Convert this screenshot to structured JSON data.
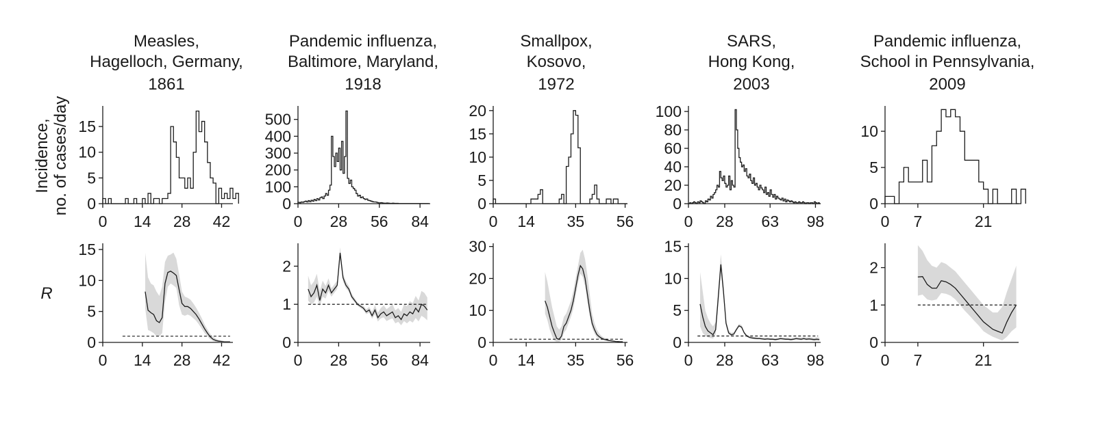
{
  "row_labels": {
    "incidence": [
      "Incidence,",
      "no. of cases/day"
    ],
    "r": "R"
  },
  "chart_data": [
    {
      "type": "line",
      "title": [
        "Measles,",
        "Hagelloch, Germany,",
        "1861"
      ],
      "incidence": {
        "xlim": [
          0,
          46
        ],
        "xticks": [
          0,
          14,
          28,
          42
        ],
        "ylim": [
          0,
          19
        ],
        "yticks": [
          0,
          5,
          10,
          15
        ],
        "counts": [
          1,
          0,
          1,
          0,
          0,
          0,
          0,
          0,
          1,
          0,
          0,
          1,
          0,
          0,
          1,
          0,
          2,
          0,
          1,
          1,
          0,
          1,
          1,
          2,
          15,
          12,
          9,
          5,
          5,
          3,
          5,
          3,
          10,
          18,
          14,
          16,
          12,
          8,
          5,
          4,
          0,
          3,
          1,
          2,
          1,
          3,
          1,
          2
        ]
      },
      "r": {
        "xlim": [
          0,
          46
        ],
        "xticks": [
          0,
          14,
          28,
          42
        ],
        "ylim": [
          0,
          16
        ],
        "yticks": [
          0,
          5,
          10,
          15
        ],
        "ref": 1,
        "ref_x": [
          7,
          45
        ],
        "x": [
          15,
          16,
          17,
          18,
          19,
          20,
          21,
          22,
          23,
          24,
          25,
          26,
          27,
          28,
          29,
          30,
          31,
          32,
          33,
          34,
          35,
          36,
          37,
          38,
          39,
          40,
          41,
          42,
          43,
          44,
          45
        ],
        "y": [
          8.2,
          5.2,
          4.8,
          4.5,
          3.5,
          3.2,
          4.0,
          9.5,
          11.3,
          11.5,
          11.2,
          10.8,
          8.5,
          6.3,
          5.8,
          5.8,
          5.5,
          5.0,
          4.5,
          3.8,
          3.0,
          2.2,
          1.5,
          0.9,
          0.5,
          0.3,
          0.2,
          0.15,
          0.1,
          0.1,
          0.1
        ],
        "lower": [
          5.5,
          2.0,
          1.8,
          1.5,
          1.0,
          1.0,
          1.5,
          6.5,
          9.0,
          9.5,
          9.2,
          8.8,
          6.0,
          4.5,
          4.3,
          4.5,
          4.3,
          3.9,
          3.5,
          2.9,
          2.2,
          1.5,
          1.0,
          0.5,
          0.2,
          0.1,
          0.05,
          0.03,
          0.02,
          0.02,
          0.02
        ],
        "upper": [
          14.5,
          10.5,
          9.5,
          9.2,
          8.2,
          7.5,
          9.0,
          13.0,
          14.0,
          14.2,
          14.5,
          13.5,
          11.0,
          8.2,
          7.4,
          7.2,
          6.9,
          6.3,
          5.6,
          4.8,
          3.9,
          2.9,
          2.1,
          1.4,
          0.9,
          0.6,
          0.4,
          0.3,
          0.2,
          0.2,
          0.2
        ]
      }
    },
    {
      "type": "line",
      "title": [
        "Pandemic influenza,",
        "Baltimore, Maryland,",
        "1918"
      ],
      "incidence": {
        "xlim": [
          0,
          91
        ],
        "xticks": [
          0,
          28,
          56,
          84
        ],
        "ylim": [
          0,
          580
        ],
        "yticks": [
          0,
          100,
          200,
          300,
          400,
          500
        ],
        "counts": [
          8,
          5,
          10,
          8,
          12,
          15,
          10,
          18,
          12,
          20,
          15,
          25,
          18,
          30,
          22,
          35,
          40,
          30,
          45,
          60,
          50,
          80,
          110,
          400,
          280,
          220,
          300,
          250,
          330,
          200,
          370,
          180,
          280,
          550,
          150,
          120,
          140,
          100,
          90,
          80,
          60,
          45,
          50,
          35,
          40,
          30,
          25,
          28,
          20,
          18,
          15,
          12,
          10,
          10,
          8,
          5,
          5,
          6,
          4,
          3,
          3,
          4,
          3,
          2,
          2,
          3,
          2,
          2,
          2,
          1,
          1,
          1,
          1,
          1,
          1,
          1,
          1,
          1,
          1,
          1,
          1,
          1,
          1,
          1,
          1,
          1,
          1,
          1,
          1,
          1
        ]
      },
      "r": {
        "xlim": [
          0,
          91
        ],
        "xticks": [
          0,
          28,
          56,
          84
        ],
        "ylim": [
          0,
          2.6
        ],
        "yticks": [
          0,
          1,
          2
        ],
        "ref": 1,
        "ref_x": [
          7,
          89
        ],
        "x": [
          7,
          9,
          11,
          13,
          15,
          17,
          19,
          21,
          23,
          25,
          27,
          29,
          31,
          33,
          35,
          37,
          39,
          41,
          43,
          45,
          47,
          49,
          51,
          53,
          55,
          57,
          59,
          61,
          63,
          65,
          67,
          69,
          71,
          73,
          75,
          77,
          79,
          81,
          83,
          85,
          87,
          89
        ],
        "y": [
          1.4,
          1.2,
          1.3,
          1.5,
          1.1,
          1.4,
          1.3,
          1.5,
          1.3,
          1.4,
          1.5,
          2.35,
          1.7,
          1.5,
          1.4,
          1.2,
          1.1,
          1.0,
          0.95,
          0.9,
          0.8,
          0.85,
          0.7,
          0.85,
          0.65,
          0.75,
          0.8,
          0.7,
          0.75,
          0.8,
          0.65,
          0.7,
          0.6,
          0.75,
          0.7,
          0.8,
          0.75,
          0.9,
          0.8,
          1.0,
          0.95,
          0.85
        ],
        "lower": [
          1.1,
          1.0,
          1.05,
          1.2,
          0.95,
          1.2,
          1.15,
          1.35,
          1.2,
          1.3,
          1.4,
          2.2,
          1.6,
          1.42,
          1.33,
          1.14,
          1.05,
          0.96,
          0.9,
          0.85,
          0.74,
          0.78,
          0.62,
          0.74,
          0.55,
          0.63,
          0.66,
          0.56,
          0.6,
          0.63,
          0.5,
          0.54,
          0.45,
          0.56,
          0.5,
          0.57,
          0.52,
          0.64,
          0.55,
          0.7,
          0.65,
          0.58
        ],
        "upper": [
          1.75,
          1.5,
          1.6,
          1.8,
          1.35,
          1.62,
          1.48,
          1.68,
          1.42,
          1.52,
          1.62,
          2.5,
          1.8,
          1.6,
          1.48,
          1.28,
          1.16,
          1.05,
          1.0,
          0.96,
          0.87,
          0.93,
          0.8,
          0.98,
          0.78,
          0.9,
          0.97,
          0.87,
          0.93,
          1.0,
          0.84,
          0.9,
          0.8,
          1.0,
          0.95,
          1.08,
          1.03,
          1.22,
          1.1,
          1.35,
          1.3,
          1.18
        ]
      }
    },
    {
      "type": "line",
      "title": [
        "Smallpox,",
        "Kosovo,",
        "1972"
      ],
      "incidence": {
        "xlim": [
          0,
          57
        ],
        "xticks": [
          0,
          14,
          35,
          56
        ],
        "ylim": [
          0,
          21
        ],
        "yticks": [
          0,
          5,
          10,
          15,
          20
        ],
        "counts": [
          1,
          0,
          0,
          0,
          0,
          0,
          0,
          0,
          0,
          0,
          0,
          0,
          0,
          0,
          0,
          0,
          1,
          1,
          1,
          2,
          3,
          0,
          0,
          0,
          0,
          0,
          0,
          0,
          1,
          2,
          0,
          8,
          10,
          15,
          20,
          19,
          12,
          0,
          0,
          0,
          0,
          1,
          2,
          4,
          1,
          0,
          0,
          0,
          1,
          1,
          0,
          1,
          1,
          0,
          0,
          0,
          0
        ]
      },
      "r": {
        "xlim": [
          0,
          57
        ],
        "xticks": [
          0,
          14,
          35,
          56
        ],
        "ylim": [
          0,
          31
        ],
        "yticks": [
          0,
          10,
          20,
          30
        ],
        "ref": 1,
        "ref_x": [
          7,
          55
        ],
        "x": [
          22,
          23,
          24,
          25,
          26,
          27,
          28,
          29,
          30,
          31,
          32,
          33,
          34,
          35,
          36,
          37,
          38,
          39,
          40,
          41,
          42,
          43,
          44,
          45,
          46,
          47,
          48,
          49,
          50,
          51,
          52,
          53,
          54,
          55
        ],
        "y": [
          13,
          11,
          8,
          5,
          3,
          1.2,
          1,
          2,
          5,
          6,
          8,
          10,
          13,
          17,
          21,
          24,
          23,
          20,
          15,
          10,
          6,
          4,
          2.5,
          1.8,
          1.3,
          1.0,
          0.8,
          0.6,
          0.5,
          0.4,
          0.3,
          0.25,
          0.2,
          0.2
        ],
        "lower": [
          9,
          7,
          4,
          2,
          0.5,
          0.2,
          0.2,
          0.8,
          3,
          4,
          6,
          8,
          10.5,
          14.5,
          18.5,
          21.5,
          20.5,
          17.5,
          12.5,
          8,
          4.5,
          2.8,
          1.6,
          1.1,
          0.8,
          0.6,
          0.45,
          0.35,
          0.28,
          0.22,
          0.17,
          0.14,
          0.11,
          0.11
        ],
        "upper": [
          22,
          19,
          15,
          11,
          8,
          5,
          4,
          5,
          8,
          9,
          11,
          13,
          16,
          20,
          24,
          28,
          29,
          26,
          21,
          15,
          9,
          6,
          4,
          2.8,
          2.0,
          1.5,
          1.2,
          0.9,
          0.75,
          0.6,
          0.45,
          0.38,
          0.3,
          0.3
        ]
      }
    },
    {
      "type": "line",
      "title": [
        "SARS,",
        "Hong Kong,",
        "2003"
      ],
      "incidence": {
        "xlim": [
          0,
          102
        ],
        "xticks": [
          0,
          28,
          63,
          98
        ],
        "ylim": [
          0,
          106
        ],
        "yticks": [
          0,
          20,
          40,
          60,
          80,
          100
        ],
        "counts": [
          0,
          1,
          0,
          1,
          2,
          1,
          0,
          2,
          1,
          3,
          2,
          1,
          0,
          3,
          2,
          5,
          4,
          8,
          6,
          10,
          12,
          15,
          20,
          18,
          35,
          28,
          25,
          30,
          22,
          18,
          20,
          30,
          15,
          25,
          20,
          18,
          102,
          80,
          60,
          50,
          45,
          40,
          42,
          35,
          38,
          30,
          28,
          32,
          25,
          22,
          28,
          20,
          22,
          18,
          15,
          20,
          17,
          15,
          12,
          18,
          10,
          12,
          8,
          15,
          10,
          7,
          10,
          5,
          8,
          6,
          5,
          4,
          6,
          3,
          5,
          2,
          4,
          3,
          2,
          3,
          2,
          1,
          2,
          1,
          1,
          2,
          1,
          1,
          2,
          1,
          0,
          1,
          1,
          0,
          1,
          1,
          0,
          2,
          1,
          0,
          1,
          0
        ]
      },
      "r": {
        "xlim": [
          0,
          102
        ],
        "xticks": [
          0,
          28,
          63,
          98
        ],
        "ylim": [
          0,
          15.5
        ],
        "yticks": [
          0,
          5,
          10,
          15
        ],
        "ref": 1,
        "ref_x": [
          7,
          100
        ],
        "x": [
          9,
          11,
          13,
          15,
          17,
          19,
          21,
          23,
          25,
          27,
          29,
          31,
          33,
          35,
          37,
          39,
          41,
          43,
          45,
          47,
          49,
          51,
          53,
          55,
          57,
          59,
          61,
          63,
          65,
          67,
          69,
          71,
          73,
          75,
          77,
          79,
          81,
          83,
          85,
          87,
          89,
          91,
          93,
          95,
          97,
          99,
          101
        ],
        "y": [
          6,
          4,
          2.5,
          1.8,
          1.5,
          1.2,
          2,
          7,
          12.2,
          8,
          3,
          1.5,
          1.2,
          1.3,
          2,
          2.6,
          2.4,
          1.5,
          1.0,
          0.8,
          0.7,
          0.65,
          0.6,
          0.6,
          0.55,
          0.5,
          0.55,
          0.5,
          0.5,
          0.45,
          0.5,
          0.6,
          0.55,
          0.5,
          0.5,
          0.45,
          0.5,
          0.6,
          0.55,
          0.5,
          0.6,
          0.5,
          0.55,
          0.5,
          0.45,
          0.5,
          0.45
        ],
        "lower": [
          2.5,
          1.5,
          1.0,
          0.8,
          0.7,
          0.6,
          1.3,
          6,
          11.3,
          7.2,
          2.6,
          1.2,
          1.0,
          1.1,
          1.8,
          2.4,
          2.2,
          1.35,
          0.85,
          0.65,
          0.55,
          0.5,
          0.45,
          0.45,
          0.4,
          0.35,
          0.4,
          0.35,
          0.35,
          0.3,
          0.35,
          0.42,
          0.38,
          0.33,
          0.33,
          0.28,
          0.32,
          0.4,
          0.35,
          0.3,
          0.38,
          0.3,
          0.33,
          0.28,
          0.23,
          0.25,
          0.2
        ],
        "upper": [
          11,
          8,
          5,
          3.8,
          3,
          2.5,
          3.2,
          8.5,
          13.8,
          9.2,
          3.5,
          1.9,
          1.5,
          1.6,
          2.3,
          2.9,
          2.7,
          1.7,
          1.2,
          1.0,
          0.9,
          0.85,
          0.8,
          0.8,
          0.75,
          0.7,
          0.75,
          0.7,
          0.7,
          0.65,
          0.7,
          0.82,
          0.76,
          0.72,
          0.72,
          0.67,
          0.72,
          0.84,
          0.8,
          0.75,
          0.86,
          0.75,
          0.82,
          0.78,
          0.72,
          0.8,
          0.76
        ]
      }
    },
    {
      "type": "line",
      "title": [
        "Pandemic influenza,",
        "School in Pennsylvania,",
        "2009"
      ],
      "incidence": {
        "xlim": [
          0,
          28.5
        ],
        "xticks": [
          0,
          7,
          21
        ],
        "ylim": [
          0,
          13.5
        ],
        "yticks": [
          0,
          5,
          10
        ],
        "counts": [
          1,
          1,
          0,
          3,
          5,
          3,
          3,
          3,
          6,
          3,
          8,
          10,
          13,
          12,
          13,
          12,
          10,
          6,
          6,
          6,
          3,
          2,
          0,
          2,
          0,
          0,
          0,
          2,
          0,
          2
        ]
      },
      "r": {
        "xlim": [
          0,
          28.5
        ],
        "xticks": [
          0,
          7,
          21
        ],
        "ylim": [
          0,
          2.65
        ],
        "yticks": [
          0,
          1,
          2
        ],
        "ref": 1,
        "ref_x": [
          7,
          28
        ],
        "x": [
          7,
          8,
          9,
          10,
          11,
          12,
          13,
          14,
          15,
          16,
          17,
          18,
          19,
          20,
          21,
          22,
          23,
          24,
          25,
          26,
          27,
          28
        ],
        "y": [
          1.75,
          1.76,
          1.55,
          1.45,
          1.45,
          1.65,
          1.62,
          1.55,
          1.45,
          1.3,
          1.15,
          1.0,
          0.85,
          0.7,
          0.55,
          0.45,
          0.35,
          0.3,
          0.25,
          0.55,
          0.8,
          1.0
        ],
        "lower": [
          1.25,
          1.28,
          1.15,
          1.12,
          1.15,
          1.32,
          1.3,
          1.25,
          1.15,
          1.0,
          0.85,
          0.72,
          0.58,
          0.45,
          0.3,
          0.22,
          0.15,
          0.1,
          0.05,
          0.15,
          0.3,
          0.4
        ],
        "upper": [
          2.6,
          2.45,
          2.2,
          2.05,
          2.0,
          2.15,
          2.1,
          2.0,
          1.9,
          1.75,
          1.6,
          1.45,
          1.3,
          1.15,
          1.0,
          0.9,
          0.8,
          0.8,
          0.95,
          1.35,
          1.7,
          2.05
        ]
      }
    }
  ]
}
